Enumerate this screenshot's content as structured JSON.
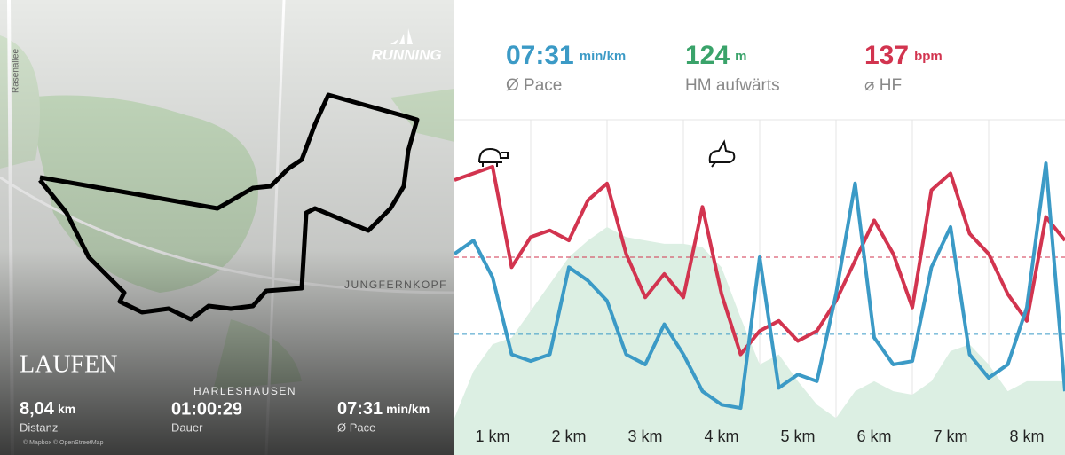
{
  "map": {
    "street_label": "Rasenallee",
    "brand": "RUNNING",
    "places": [
      "JUNGFERNKOPF",
      "HARLESHAUSEN"
    ],
    "activity": "LAUFEN",
    "stats": [
      {
        "value": "8,04",
        "unit": "km",
        "label": "Distanz"
      },
      {
        "value": "01:00:29",
        "label": "Dauer"
      },
      {
        "value": "07:31",
        "unit": "min/km",
        "label": "Ø Pace"
      }
    ],
    "attribution": "© Mapbox © OpenStreetMap"
  },
  "summary": [
    {
      "value": "07:31",
      "unit": "min/km",
      "label": "Ø Pace",
      "color": "#3b9ac6"
    },
    {
      "value": "124",
      "unit": "m",
      "label": "HM aufwärts",
      "color": "#3aa36a"
    },
    {
      "value": "137",
      "unit": "bpm",
      "label": "⌀ HF",
      "color": "#d2344f"
    }
  ],
  "chart_data": {
    "type": "line",
    "x_labels": [
      "1 km",
      "2 km",
      "3 km",
      "4 km",
      "5 km",
      "6 km",
      "7 km",
      "8 km"
    ],
    "x": [
      0,
      0.25,
      0.5,
      0.75,
      1,
      1.25,
      1.5,
      1.75,
      2,
      2.25,
      2.5,
      2.75,
      3,
      3.25,
      3.5,
      3.75,
      4,
      4.25,
      4.5,
      4.75,
      5,
      5.25,
      5.5,
      5.75,
      6,
      6.25,
      6.5,
      6.75,
      7,
      7.25,
      7.5,
      7.75,
      8
    ],
    "xlim": [
      0,
      8
    ],
    "ylim": [
      0,
      100
    ],
    "area": {
      "color": "#dcefe3",
      "values": [
        11,
        25,
        33,
        35,
        43,
        51,
        59,
        64,
        68,
        65,
        64,
        63,
        63,
        62,
        56,
        41,
        27,
        30,
        22,
        15,
        11,
        19,
        22,
        19,
        18,
        22,
        31,
        33,
        27,
        19,
        22,
        22,
        22
      ]
    },
    "series": [
      {
        "color": "#d2344f",
        "values": [
          82,
          84,
          86,
          56,
          65,
          67,
          64,
          76,
          81,
          60,
          47,
          54,
          47,
          74,
          48,
          30,
          37,
          40,
          34,
          37,
          46,
          58,
          70,
          60,
          44,
          79,
          84,
          66,
          60,
          48,
          40,
          71,
          64
        ]
      },
      {
        "color": "#3b9ac6",
        "values": [
          60,
          64,
          53,
          30,
          28,
          30,
          56,
          52,
          46,
          30,
          27,
          39,
          30,
          19,
          15,
          14,
          59,
          20,
          24,
          22,
          48,
          81,
          35,
          27,
          28,
          56,
          68,
          30,
          23,
          27,
          44,
          87,
          19
        ]
      }
    ],
    "averages": [
      {
        "color": "#d2344f",
        "value": 59
      },
      {
        "color": "#3b9ac6",
        "value": 36
      }
    ]
  }
}
